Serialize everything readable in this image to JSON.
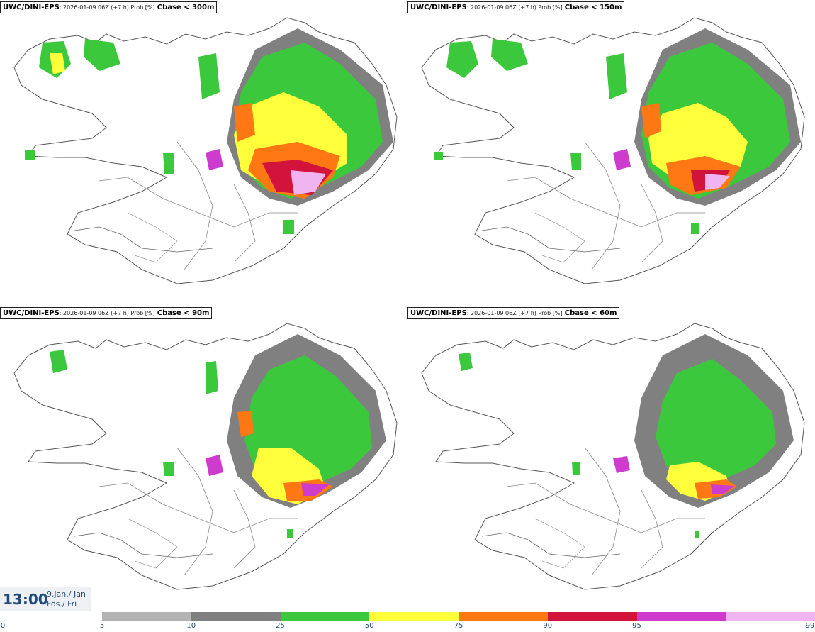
{
  "panels": [
    {
      "model": "UWC/DINI-EPS",
      "run_info": ": 2026-01-09 06Z (+7 h) Prob [%]",
      "variable": "Cbase < 300m"
    },
    {
      "model": "UWC/DINI-EPS",
      "run_info": ": 2026-01-09 06Z (+7 h) Prob [%]",
      "variable": "Cbase < 150m"
    },
    {
      "model": "UWC/DINI-EPS",
      "run_info": ": 2026-01-09 06Z (+7 h) Prob [%]",
      "variable": "Cbase < 90m"
    },
    {
      "model": "UWC/DINI-EPS",
      "run_info": ": 2026-01-09 06Z (+7 h) Prob [%]",
      "variable": "Cbase < 60m"
    }
  ],
  "time": {
    "clock": "13:00",
    "date_line": "9.jan./ Jan",
    "day_line": "Fös./ Fri"
  },
  "legend": {
    "ticks": [
      "0",
      "5",
      "10",
      "25",
      "50",
      "75",
      "90",
      "95",
      "99"
    ],
    "colors": [
      "#b3b3b3",
      "#808080",
      "#3cc83c",
      "#ffff3c",
      "#ff7814",
      "#d2143c",
      "#cd3ccd",
      "#f0b4f0"
    ]
  }
}
